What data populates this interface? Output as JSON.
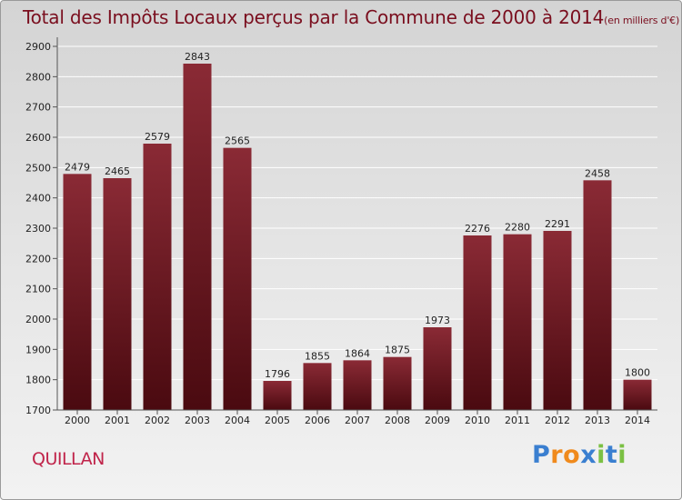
{
  "title": "Total des Impôts Locaux perçus par la Commune de 2000 à 2014",
  "unit": "(en milliers d'€)",
  "commune": "QUILLAN",
  "logo": {
    "text": "Proxiti",
    "letters": [
      "P",
      "r",
      "o",
      "x",
      "i",
      "t",
      "i"
    ],
    "letter_colors": [
      "#3a7fd0",
      "#f08a1c",
      "#f08a1c",
      "#3a7fd0",
      "#7bc043",
      "#3a7fd0",
      "#7bc043"
    ]
  },
  "colors": {
    "bar_top": "#8a2a35",
    "bar_bottom": "#4a0a10",
    "grid": "#ffffff",
    "title": "#7a0e1e",
    "commune": "#c0244a"
  },
  "chart_data": {
    "type": "bar",
    "title": "Total des Impôts Locaux perçus par la Commune de 2000 à 2014",
    "xlabel": "",
    "ylabel": "",
    "categories": [
      "2000",
      "2001",
      "2002",
      "2003",
      "2004",
      "2005",
      "2006",
      "2007",
      "2008",
      "2009",
      "2010",
      "2011",
      "2012",
      "2013",
      "2014"
    ],
    "values": [
      2479,
      2465,
      2579,
      2843,
      2565,
      1796,
      1855,
      1864,
      1875,
      1973,
      2276,
      2280,
      2291,
      2458,
      1800
    ],
    "ylim": [
      1700,
      2900
    ],
    "yticks": [
      1700,
      1800,
      1900,
      2000,
      2100,
      2200,
      2300,
      2400,
      2500,
      2600,
      2700,
      2800,
      2900
    ],
    "grid": true
  }
}
